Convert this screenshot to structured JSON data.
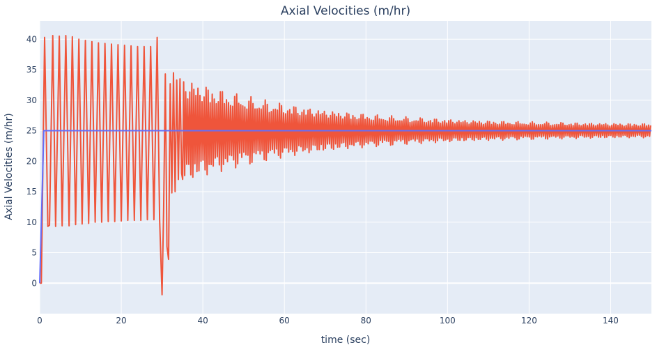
{
  "chart_data": {
    "type": "line",
    "title": "Axial Velocities (m/hr)",
    "xlabel": "time (sec)",
    "ylabel": "Axial Velocities (m/hr)",
    "xlim": [
      0,
      150
    ],
    "ylim": [
      -5,
      43
    ],
    "x_ticks": [
      0,
      20,
      40,
      60,
      80,
      100,
      120,
      140
    ],
    "y_ticks": [
      0,
      5,
      10,
      15,
      20,
      25,
      30,
      35,
      40
    ],
    "grid": true,
    "legend": "none",
    "colors": {
      "plot_bg": "#e5ecf6",
      "grid": "#ffffff",
      "text": "#2a3f5f"
    },
    "series": [
      {
        "color": "#636efa",
        "x": [
          0,
          1,
          35,
          150
        ],
        "y": [
          0,
          25,
          25,
          25
        ]
      },
      {
        "color": "#ef553b",
        "x": [
          0,
          0.4,
          1.2,
          2.0,
          2.4,
          3.2,
          3.9,
          4.8,
          5.5,
          6.4,
          7.2,
          8.0,
          8.8,
          9.6,
          10.4,
          11.2,
          12.0,
          12.8,
          13.6,
          14.4,
          15.2,
          16.0,
          16.8,
          17.6,
          18.4,
          19.2,
          20.0,
          20.8,
          21.6,
          22.4,
          23.2,
          24.0,
          24.8,
          25.6,
          26.4,
          27.2,
          28.0,
          28.8,
          29.4,
          30.0,
          30.4,
          30.8,
          31.2,
          31.6,
          32.0,
          32.4,
          32.8,
          33.2,
          33.6,
          34.0,
          34.4,
          34.8
        ],
        "y": [
          0,
          0,
          40.3,
          9.3,
          9.5,
          40.6,
          9.3,
          40.5,
          9.4,
          40.6,
          9.4,
          40.4,
          9.6,
          40.0,
          9.7,
          39.8,
          9.8,
          39.6,
          10.0,
          39.4,
          10.0,
          39.3,
          10.1,
          39.2,
          10.1,
          39.1,
          10.2,
          39.0,
          10.3,
          38.9,
          10.3,
          38.8,
          10.3,
          38.8,
          10.4,
          38.8,
          10.4,
          40.3,
          10.5,
          -1.9,
          12.5,
          34.3,
          6.0,
          3.9,
          32.7,
          14.8,
          34.5,
          15.0,
          33.3,
          17.0,
          33.5,
          18.0
        ]
      }
    ]
  }
}
